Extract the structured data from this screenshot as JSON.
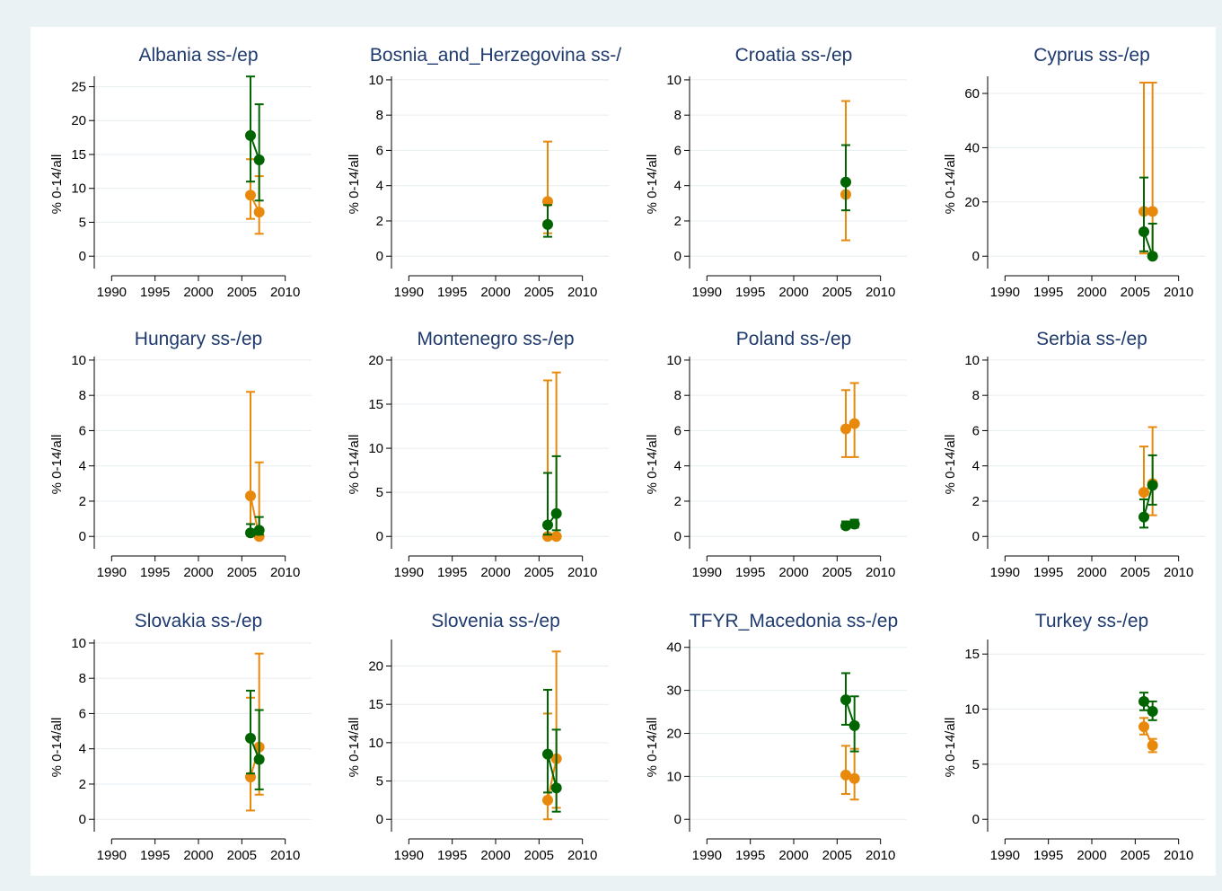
{
  "colors": {
    "background": "#eaf2f3",
    "panel": "#ffffff",
    "title": "#1f3a6e",
    "green": "#006400",
    "orange": "#e8890c",
    "grid": "#e6eef0"
  },
  "chart_data": [
    {
      "type": "scatter",
      "title": "Albania ss-/ep",
      "ylabel": "% 0-14/all",
      "xlim": [
        1990,
        2010
      ],
      "xticks": [
        1990,
        1995,
        2000,
        2005,
        2010
      ],
      "ylim": [
        0,
        26
      ],
      "yticks": [
        0,
        5,
        10,
        15,
        20,
        25
      ],
      "grid": true,
      "series": [
        {
          "color": "green",
          "points": [
            {
              "x": 2006,
              "y": 17.8,
              "lo": 11.0,
              "hi": 26.5
            },
            {
              "x": 2007,
              "y": 14.2,
              "lo": 8.2,
              "hi": 22.4
            }
          ]
        },
        {
          "color": "orange",
          "points": [
            {
              "x": 2006,
              "y": 9.0,
              "lo": 5.5,
              "hi": 14.3
            },
            {
              "x": 2007,
              "y": 6.5,
              "lo": 3.3,
              "hi": 11.8
            }
          ]
        }
      ]
    },
    {
      "type": "scatter",
      "title": "Bosnia_and_Herzegovina ss-/",
      "ylabel": "% 0-14/all",
      "xlim": [
        1990,
        2010
      ],
      "xticks": [
        1990,
        1995,
        2000,
        2005,
        2010
      ],
      "ylim": [
        0,
        10
      ],
      "yticks": [
        0,
        2,
        4,
        6,
        8,
        10
      ],
      "grid": true,
      "series": [
        {
          "color": "green",
          "points": [
            {
              "x": 2006,
              "y": 1.8,
              "lo": 1.1,
              "hi": 2.9
            }
          ]
        },
        {
          "color": "orange",
          "points": [
            {
              "x": 2006,
              "y": 3.1,
              "lo": 1.3,
              "hi": 6.5
            }
          ]
        }
      ]
    },
    {
      "type": "scatter",
      "title": "Croatia ss-/ep",
      "ylabel": "% 0-14/all",
      "xlim": [
        1990,
        2010
      ],
      "xticks": [
        1990,
        1995,
        2000,
        2005,
        2010
      ],
      "ylim": [
        0,
        10
      ],
      "yticks": [
        0,
        2,
        4,
        6,
        8,
        10
      ],
      "grid": true,
      "series": [
        {
          "color": "green",
          "points": [
            {
              "x": 2006,
              "y": 4.2,
              "lo": 2.6,
              "hi": 6.3
            }
          ]
        },
        {
          "color": "orange",
          "points": [
            {
              "x": 2006,
              "y": 3.5,
              "lo": 0.9,
              "hi": 8.8
            }
          ]
        }
      ]
    },
    {
      "type": "scatter",
      "title": "Cyprus ss-/ep",
      "ylabel": "% 0-14/all",
      "xlim": [
        1990,
        2010
      ],
      "xticks": [
        1990,
        1995,
        2000,
        2005,
        2010
      ],
      "ylim": [
        0,
        65
      ],
      "yticks": [
        0,
        20,
        40,
        60
      ],
      "grid": true,
      "series": [
        {
          "color": "green",
          "points": [
            {
              "x": 2006,
              "y": 9.0,
              "lo": 1.8,
              "hi": 29.0
            },
            {
              "x": 2007,
              "y": 0,
              "lo": 0,
              "hi": 12.0
            }
          ]
        },
        {
          "color": "orange",
          "points": [
            {
              "x": 2006,
              "y": 16.5,
              "lo": 1.0,
              "hi": 64.0
            },
            {
              "x": 2007,
              "y": 16.5,
              "lo": 1.0,
              "hi": 64.0
            }
          ]
        }
      ]
    },
    {
      "type": "scatter",
      "title": "Hungary ss-/ep",
      "ylabel": "% 0-14/all",
      "xlim": [
        1990,
        2010
      ],
      "xticks": [
        1990,
        1995,
        2000,
        2005,
        2010
      ],
      "ylim": [
        0,
        10
      ],
      "yticks": [
        0,
        2,
        4,
        6,
        8,
        10
      ],
      "grid": true,
      "series": [
        {
          "color": "green",
          "points": [
            {
              "x": 2006,
              "y": 0.2,
              "lo": 0.05,
              "hi": 0.7
            },
            {
              "x": 2007,
              "y": 0.35,
              "lo": 0.1,
              "hi": 1.1
            }
          ]
        },
        {
          "color": "orange",
          "points": [
            {
              "x": 2006,
              "y": 2.3,
              "lo": 0.3,
              "hi": 8.2
            },
            {
              "x": 2007,
              "y": 0,
              "lo": 0,
              "hi": 4.2
            }
          ]
        }
      ]
    },
    {
      "type": "scatter",
      "title": "Montenegro ss-/ep",
      "ylabel": "% 0-14/all",
      "xlim": [
        1990,
        2010
      ],
      "xticks": [
        1990,
        1995,
        2000,
        2005,
        2010
      ],
      "ylim": [
        0,
        20
      ],
      "yticks": [
        0,
        5,
        10,
        15,
        20
      ],
      "grid": true,
      "series": [
        {
          "color": "green",
          "points": [
            {
              "x": 2006,
              "y": 1.3,
              "lo": 0.2,
              "hi": 7.2
            },
            {
              "x": 2007,
              "y": 2.6,
              "lo": 0.7,
              "hi": 9.1
            }
          ]
        },
        {
          "color": "orange",
          "points": [
            {
              "x": 2006,
              "y": 0,
              "lo": 0,
              "hi": 17.7
            },
            {
              "x": 2007,
              "y": 0,
              "lo": 0,
              "hi": 18.6
            }
          ]
        }
      ]
    },
    {
      "type": "scatter",
      "title": "Poland ss-/ep",
      "ylabel": "% 0-14/all",
      "xlim": [
        1990,
        2010
      ],
      "xticks": [
        1990,
        1995,
        2000,
        2005,
        2010
      ],
      "ylim": [
        0,
        10
      ],
      "yticks": [
        0,
        2,
        4,
        6,
        8,
        10
      ],
      "grid": true,
      "series": [
        {
          "color": "green",
          "points": [
            {
              "x": 2006,
              "y": 0.6,
              "lo": 0.45,
              "hi": 0.85
            },
            {
              "x": 2007,
              "y": 0.7,
              "lo": 0.5,
              "hi": 0.95
            }
          ]
        },
        {
          "color": "orange",
          "points": [
            {
              "x": 2006,
              "y": 6.1,
              "lo": 4.5,
              "hi": 8.3
            },
            {
              "x": 2007,
              "y": 6.4,
              "lo": 4.5,
              "hi": 8.7
            }
          ]
        }
      ]
    },
    {
      "type": "scatter",
      "title": "Serbia ss-/ep",
      "ylabel": "% 0-14/all",
      "xlim": [
        1990,
        2010
      ],
      "xticks": [
        1990,
        1995,
        2000,
        2005,
        2010
      ],
      "ylim": [
        0,
        10
      ],
      "yticks": [
        0,
        2,
        4,
        6,
        8,
        10
      ],
      "grid": true,
      "series": [
        {
          "color": "green",
          "points": [
            {
              "x": 2006,
              "y": 1.1,
              "lo": 0.5,
              "hi": 2.1
            },
            {
              "x": 2007,
              "y": 2.9,
              "lo": 1.8,
              "hi": 4.6
            }
          ]
        },
        {
          "color": "orange",
          "points": [
            {
              "x": 2006,
              "y": 2.5,
              "lo": 1.0,
              "hi": 5.1
            },
            {
              "x": 2007,
              "y": 3.0,
              "lo": 1.2,
              "hi": 6.2
            }
          ]
        }
      ]
    },
    {
      "type": "scatter",
      "title": "Slovakia ss-/ep",
      "ylabel": "% 0-14/all",
      "xlim": [
        1990,
        2010
      ],
      "xticks": [
        1990,
        1995,
        2000,
        2005,
        2010
      ],
      "ylim": [
        0,
        10
      ],
      "yticks": [
        0,
        2,
        4,
        6,
        8,
        10
      ],
      "grid": true,
      "series": [
        {
          "color": "green",
          "points": [
            {
              "x": 2006,
              "y": 4.6,
              "lo": 2.6,
              "hi": 7.3
            },
            {
              "x": 2007,
              "y": 3.4,
              "lo": 1.7,
              "hi": 6.2
            }
          ]
        },
        {
          "color": "orange",
          "points": [
            {
              "x": 2006,
              "y": 2.4,
              "lo": 0.5,
              "hi": 6.9
            },
            {
              "x": 2007,
              "y": 4.1,
              "lo": 1.4,
              "hi": 9.4
            }
          ]
        }
      ]
    },
    {
      "type": "scatter",
      "title": "Slovenia ss-/ep",
      "ylabel": "% 0-14/all",
      "xlim": [
        1990,
        2010
      ],
      "xticks": [
        1990,
        1995,
        2000,
        2005,
        2010
      ],
      "ylim": [
        0,
        23
      ],
      "yticks": [
        0,
        5,
        10,
        15,
        20
      ],
      "grid": true,
      "series": [
        {
          "color": "green",
          "points": [
            {
              "x": 2006,
              "y": 8.5,
              "lo": 3.5,
              "hi": 16.9
            },
            {
              "x": 2007,
              "y": 4.1,
              "lo": 1.0,
              "hi": 11.7
            }
          ]
        },
        {
          "color": "orange",
          "points": [
            {
              "x": 2006,
              "y": 2.5,
              "lo": 0,
              "hi": 13.8
            },
            {
              "x": 2007,
              "y": 7.9,
              "lo": 1.5,
              "hi": 21.9
            }
          ]
        }
      ]
    },
    {
      "type": "scatter",
      "title": "TFYR_Macedonia ss-/ep",
      "ylabel": "% 0-14/all",
      "xlim": [
        1990,
        2010
      ],
      "xticks": [
        1990,
        1995,
        2000,
        2005,
        2010
      ],
      "ylim": [
        0,
        41
      ],
      "yticks": [
        0,
        10,
        20,
        30,
        40
      ],
      "grid": true,
      "series": [
        {
          "color": "green",
          "points": [
            {
              "x": 2006,
              "y": 27.8,
              "lo": 22.0,
              "hi": 34.0
            },
            {
              "x": 2007,
              "y": 21.8,
              "lo": 15.8,
              "hi": 28.6
            }
          ]
        },
        {
          "color": "orange",
          "points": [
            {
              "x": 2006,
              "y": 10.3,
              "lo": 5.9,
              "hi": 17.1
            },
            {
              "x": 2007,
              "y": 9.5,
              "lo": 4.6,
              "hi": 16.4
            }
          ]
        }
      ]
    },
    {
      "type": "scatter",
      "title": "Turkey ss-/ep",
      "ylabel": "% 0-14/all",
      "xlim": [
        1990,
        2010
      ],
      "xticks": [
        1990,
        1995,
        2000,
        2005,
        2010
      ],
      "ylim": [
        0,
        16
      ],
      "yticks": [
        0,
        5,
        10,
        15
      ],
      "grid": true,
      "series": [
        {
          "color": "green",
          "points": [
            {
              "x": 2006,
              "y": 10.7,
              "lo": 9.9,
              "hi": 11.5
            },
            {
              "x": 2007,
              "y": 9.8,
              "lo": 9.0,
              "hi": 10.7
            }
          ]
        },
        {
          "color": "orange",
          "points": [
            {
              "x": 2006,
              "y": 8.4,
              "lo": 7.7,
              "hi": 9.2
            },
            {
              "x": 2007,
              "y": 6.7,
              "lo": 6.1,
              "hi": 7.3
            }
          ]
        }
      ]
    }
  ]
}
